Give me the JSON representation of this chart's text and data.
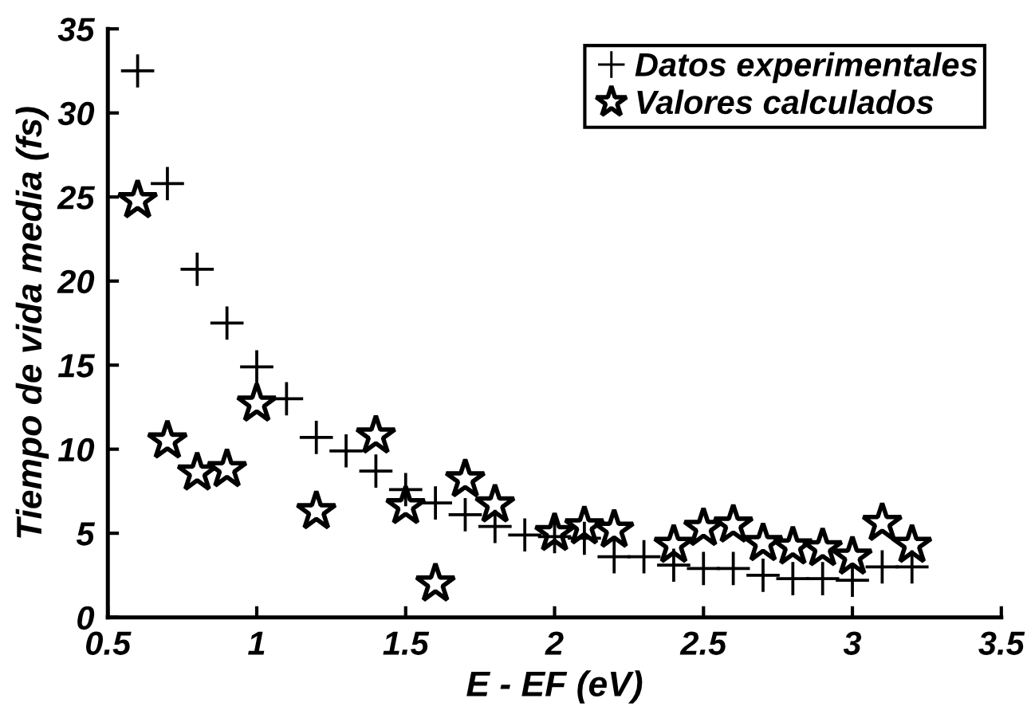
{
  "chart_data": {
    "type": "scatter",
    "xlabel": "E - EF (eV)",
    "ylabel": "Tiempo de vida media (fs)",
    "xlim": [
      0.5,
      3.5
    ],
    "ylim": [
      0,
      35
    ],
    "xticks": [
      0.5,
      1,
      1.5,
      2,
      2.5,
      3,
      3.5
    ],
    "yticks": [
      0,
      5,
      10,
      15,
      20,
      25,
      30,
      35
    ],
    "grid": false,
    "legend": "top right",
    "series": [
      {
        "name": "Datos experimentales",
        "color": "#000000",
        "marker": "cross",
        "x": [
          0.6,
          0.7,
          0.8,
          0.9,
          1.0,
          1.1,
          1.2,
          1.3,
          1.4,
          1.5,
          1.6,
          1.7,
          1.8,
          1.9,
          2.0,
          2.1,
          2.2,
          2.3,
          2.4,
          2.5,
          2.6,
          2.7,
          2.8,
          2.9,
          3.0,
          3.1,
          3.2
        ],
        "values": [
          32.5,
          25.8,
          20.7,
          17.5,
          14.9,
          13.0,
          10.7,
          9.9,
          8.7,
          7.6,
          6.8,
          6.1,
          5.4,
          4.9,
          4.8,
          4.7,
          3.6,
          3.6,
          3.1,
          2.9,
          2.9,
          2.5,
          2.3,
          2.3,
          2.2,
          3.0,
          3.0
        ]
      },
      {
        "name": "Valores calculados",
        "color": "#000000",
        "marker": "star",
        "x": [
          0.6,
          0.7,
          0.8,
          0.9,
          1.0,
          1.2,
          1.4,
          1.5,
          1.6,
          1.7,
          1.8,
          2.0,
          2.1,
          2.2,
          2.4,
          2.5,
          2.6,
          2.7,
          2.8,
          2.9,
          3.0,
          3.1,
          3.2
        ],
        "values": [
          24.8,
          10.5,
          8.6,
          8.8,
          12.7,
          6.3,
          10.8,
          6.6,
          2.0,
          8.2,
          6.7,
          5.0,
          5.4,
          5.2,
          4.3,
          5.3,
          5.5,
          4.4,
          4.2,
          4.1,
          3.6,
          5.6,
          4.3
        ]
      }
    ]
  }
}
